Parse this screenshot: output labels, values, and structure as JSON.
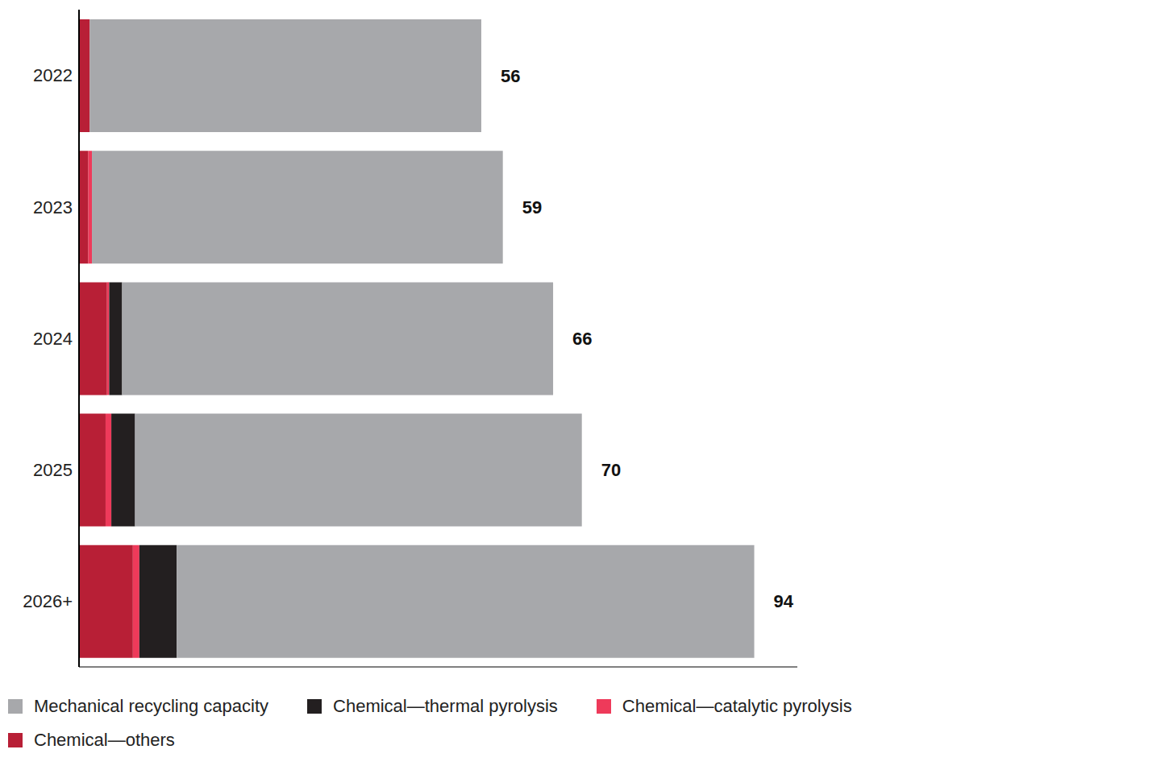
{
  "chart_data": {
    "type": "bar",
    "orientation": "horizontal",
    "stacked": true,
    "categories": [
      "2022",
      "2023",
      "2024",
      "2025",
      "2026+"
    ],
    "series": [
      {
        "name": "Chemical—others",
        "color": "#b81f36",
        "values": [
          1.5,
          1.3,
          3.9,
          3.7,
          7.5
        ]
      },
      {
        "name": "Chemical—catalytic pyrolysis",
        "color": "#ee3a5a",
        "values": [
          0,
          0.5,
          0.3,
          0.8,
          0.9
        ]
      },
      {
        "name": "Chemical—thermal pyrolysis",
        "color": "#231f20",
        "values": [
          0,
          0,
          1.8,
          3.3,
          5.2
        ]
      },
      {
        "name": "Mechanical recycling capacity",
        "color": "#a7a8ab",
        "values": [
          54.5,
          57.2,
          60.0,
          62.2,
          80.4
        ]
      }
    ],
    "totals": [
      56,
      59,
      66,
      70,
      94
    ],
    "xlim": [
      0,
      100
    ],
    "tick_labels": "y",
    "legend": "bottom"
  }
}
